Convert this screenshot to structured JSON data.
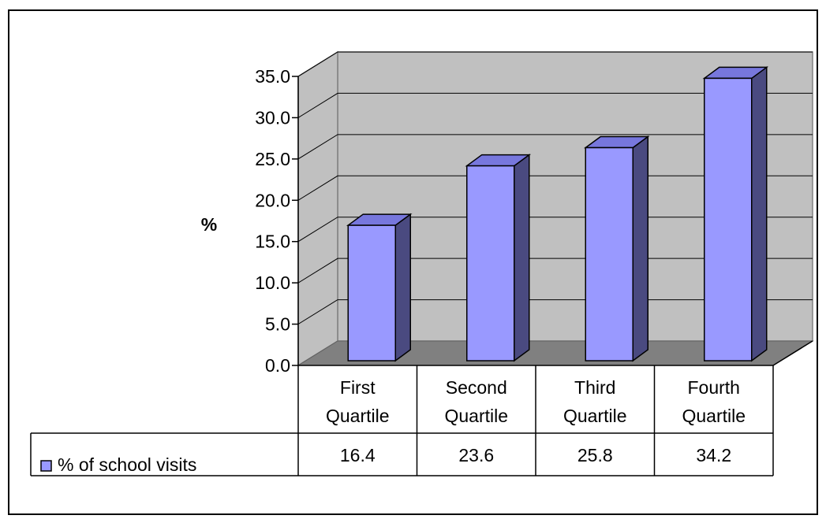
{
  "chart_data": {
    "type": "bar",
    "title": "",
    "xlabel": "",
    "ylabel": "%",
    "categories": [
      [
        "First",
        "Quartile"
      ],
      [
        "Second",
        "Quartile"
      ],
      [
        "Third",
        "Quartile"
      ],
      [
        "Fourth",
        "Quartile"
      ]
    ],
    "series": [
      {
        "name": "% of school visits",
        "values": [
          16.4,
          23.6,
          25.8,
          34.2
        ],
        "color": "#9999ff"
      }
    ],
    "value_labels": [
      "16.4",
      "23.6",
      "25.8",
      "34.2"
    ],
    "ylim": [
      0,
      35
    ],
    "yticks": [
      0,
      5,
      10,
      15,
      20,
      25,
      30,
      35
    ],
    "ytick_labels": [
      "0.0",
      "5.0",
      "10.0",
      "15.0",
      "20.0",
      "25.0",
      "30.0",
      "35.0"
    ],
    "grid": true,
    "legend": "data-table",
    "colors": {
      "bar_front": "#9999ff",
      "bar_side": "#4a4a80",
      "bar_top": "#7777dd",
      "wall": "#c0c0c0",
      "floor": "#808080",
      "frame": "#000000"
    }
  }
}
